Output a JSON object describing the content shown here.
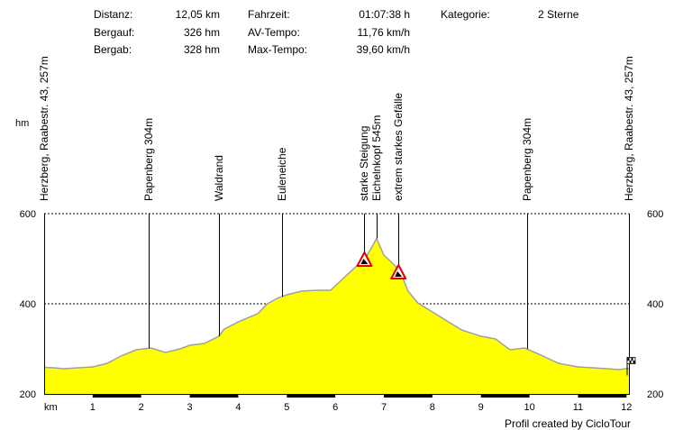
{
  "stats": [
    {
      "label": "Distanz:",
      "value": "12,05 km"
    },
    {
      "label": "Bergauf:",
      "value": "326 hm"
    },
    {
      "label": "Bergab:",
      "value": "328 hm"
    },
    {
      "label": "Fahrzeit:",
      "value": "01:07:38 h"
    },
    {
      "label": "AV-Tempo:",
      "value": "11,76 km/h"
    },
    {
      "label": "Max-Tempo:",
      "value": "39,60 km/h"
    },
    {
      "label": "Kategorie:",
      "value": "2 Sterne"
    }
  ],
  "credit": "Profil created by CicloTour",
  "chart_data": {
    "type": "area",
    "xlabel": "km",
    "ylabel": "hm",
    "xlim": [
      0,
      12.05
    ],
    "ylim": [
      200,
      600
    ],
    "x_ticks": [
      "1",
      "2",
      "3",
      "4",
      "5",
      "6",
      "7",
      "8",
      "9",
      "10",
      "11",
      "12"
    ],
    "y_ticks": [
      "600",
      "400",
      "200"
    ],
    "grid": "dashed horizontal lines at 400 and 600",
    "fill_color": "#ffff00",
    "line_color": "#a0a0a0",
    "x": [
      0,
      0.2,
      0.4,
      0.7,
      1.0,
      1.3,
      1.6,
      1.9,
      2.2,
      2.5,
      2.8,
      3.0,
      3.3,
      3.6,
      3.7,
      4.0,
      4.4,
      4.6,
      4.8,
      5.0,
      5.3,
      5.6,
      5.9,
      6.0,
      6.2,
      6.4,
      6.6,
      6.75,
      6.85,
      7.0,
      7.2,
      7.35,
      7.5,
      7.7,
      8.0,
      8.3,
      8.6,
      9.0,
      9.3,
      9.6,
      9.9,
      10.2,
      10.6,
      11.0,
      11.3,
      11.6,
      11.85,
      12.05
    ],
    "y": [
      259,
      258,
      256,
      258,
      260,
      268,
      285,
      298,
      302,
      292,
      300,
      308,
      312,
      328,
      343,
      360,
      378,
      400,
      412,
      420,
      428,
      430,
      430,
      440,
      460,
      480,
      498,
      525,
      545,
      508,
      488,
      468,
      428,
      402,
      382,
      362,
      342,
      328,
      322,
      298,
      302,
      288,
      268,
      260,
      258,
      256,
      254,
      257
    ],
    "annotations": [
      {
        "label": "Herzberg, Raabestr. 43, 257m",
        "km": 0
      },
      {
        "label": "Papenberg 304m",
        "km": 2.15
      },
      {
        "label": "Waldrand",
        "km": 3.6
      },
      {
        "label": "Euleneiche",
        "km": 4.9
      },
      {
        "label": "starke Steigung",
        "km": 6.6
      },
      {
        "label": "Eichelnkopf 545m",
        "km": 6.85
      },
      {
        "label": "extrem starkes Gefälle",
        "km": 7.3
      },
      {
        "label": "Papenberg 304m",
        "km": 9.95
      },
      {
        "label": "Herzberg, Raabestr. 43, 257m",
        "km": 12.05
      }
    ],
    "warning_markers": [
      {
        "km": 6.6,
        "hm": 498
      },
      {
        "km": 7.3,
        "hm": 470
      }
    ],
    "finish_flag": {
      "km": 12.05,
      "hm": 257
    }
  }
}
